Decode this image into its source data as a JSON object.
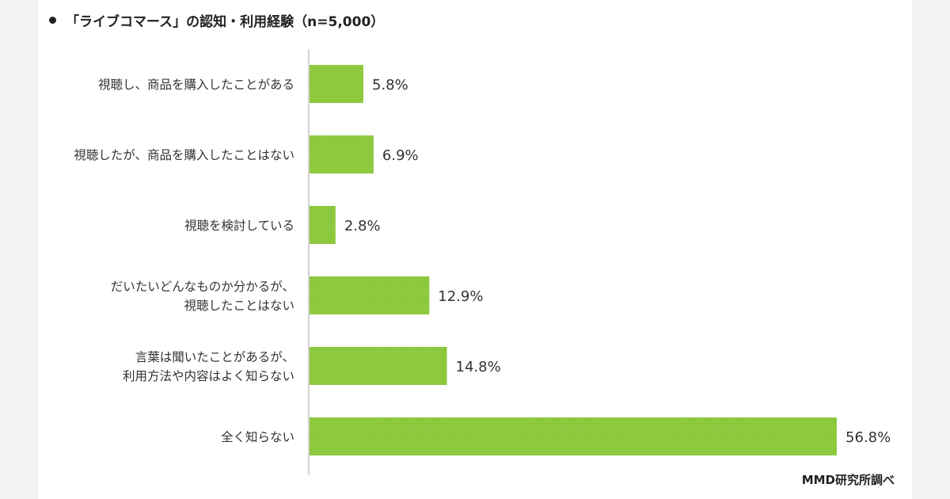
{
  "header": {
    "title": "「ライブコマース」の認知・利用経験（n=5,000）",
    "source": "MMD研究所調べ"
  },
  "colors": {
    "bar": "#8cc83c",
    "axis": "#a6a6a6",
    "text": "#333333",
    "panel": "#f3f3f3"
  },
  "chart_data": {
    "type": "bar",
    "orientation": "horizontal",
    "title": "「ライブコマース」の認知・利用経験（n=5,000）",
    "categories": [
      [
        "視聴し、商品を購入したことがある"
      ],
      [
        "視聴したが、商品を購入したことはない"
      ],
      [
        "視聴を検討している"
      ],
      [
        "だいたいどんなものか分かるが、",
        "視聴したことはない"
      ],
      [
        "言葉は聞いたことがあるが、",
        "利用方法や内容はよく知らない"
      ],
      [
        "全く知らない"
      ]
    ],
    "values": [
      5.8,
      6.9,
      2.8,
      12.9,
      14.8,
      56.8
    ],
    "value_labels": [
      "5.8%",
      "6.9%",
      "2.8%",
      "12.9%",
      "14.8%",
      "56.8%"
    ],
    "unit": "%",
    "xlim": [
      0,
      58
    ],
    "grid": false,
    "legend": "none"
  }
}
